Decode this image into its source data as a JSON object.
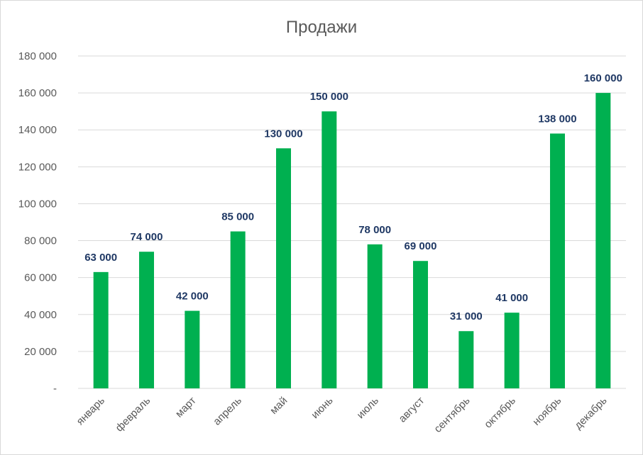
{
  "chart_data": {
    "type": "bar",
    "title": "Продажи",
    "xlabel": "",
    "ylabel": "",
    "ylim": [
      0,
      180000
    ],
    "yticks": [
      0,
      20000,
      40000,
      60000,
      80000,
      100000,
      120000,
      140000,
      160000,
      180000
    ],
    "ytick_labels": [
      "-",
      "20 000",
      "40 000",
      "60 000",
      "80 000",
      "100 000",
      "120 000",
      "140 000",
      "160 000",
      "180 000"
    ],
    "grid": true,
    "legend": "none",
    "bar_color": "#00b050",
    "categories": [
      "январь",
      "февраль",
      "март",
      "апрель",
      "май",
      "июнь",
      "июль",
      "август",
      "сентябрь",
      "октябрь",
      "ноябрь",
      "декабрь"
    ],
    "values": [
      63000,
      74000,
      42000,
      85000,
      130000,
      150000,
      78000,
      69000,
      31000,
      41000,
      138000,
      160000
    ],
    "data_labels": [
      "63 000",
      "74 000",
      "42 000",
      "85 000",
      "130 000",
      "150 000",
      "78 000",
      "69 000",
      "31 000",
      "41 000",
      "138 000",
      "160 000"
    ]
  }
}
